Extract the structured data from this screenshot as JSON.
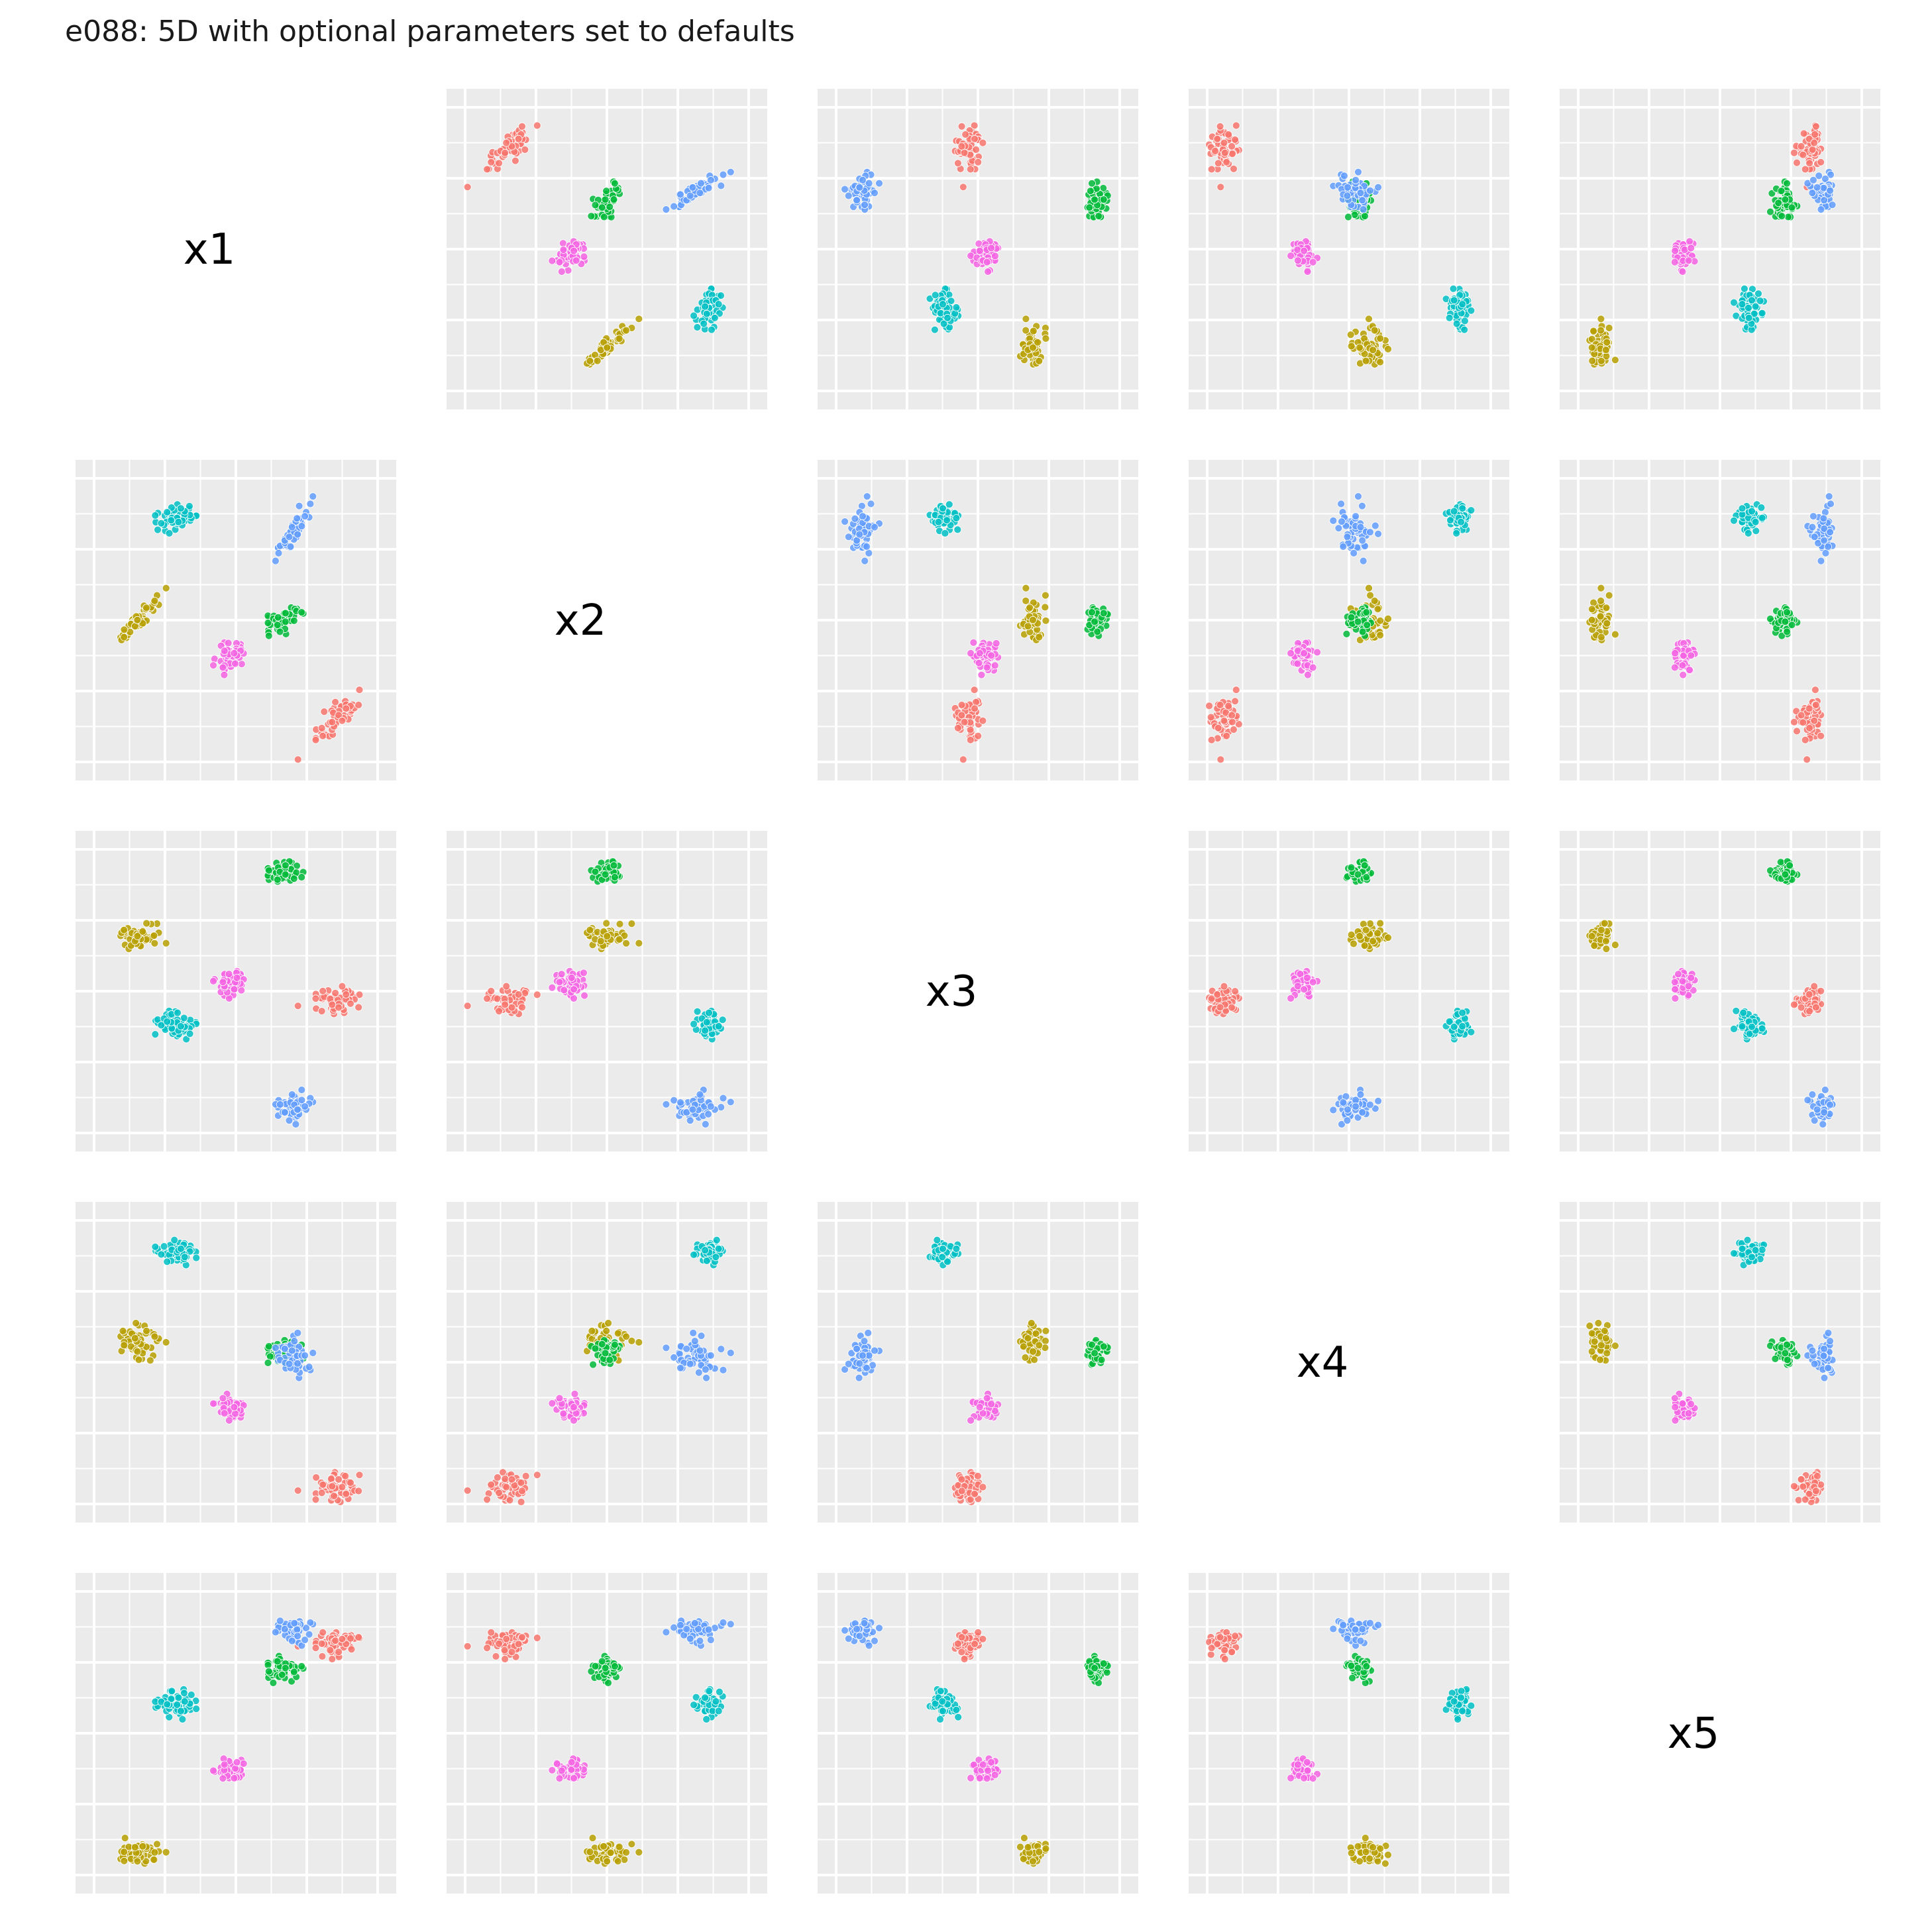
{
  "title": "e088: 5D with optional parameters set to defaults",
  "chart_data": {
    "type": "scatter",
    "variables": [
      "x1",
      "x2",
      "x3",
      "x4",
      "x5"
    ],
    "axis_range": [
      0,
      1
    ],
    "grid": true,
    "legend": "none",
    "cluster_colors": {
      "red": "#F8766D",
      "olive": "#B79F00",
      "green": "#00BA38",
      "cyan": "#00BFC4",
      "blue": "#619CFF",
      "magenta": "#F564E3"
    },
    "clusters": [
      {
        "color": "red",
        "center": [
          0.85,
          0.15,
          0.47,
          0.06,
          0.82
        ],
        "spread": [
          0.04,
          0.04,
          0.022,
          0.025,
          0.02
        ],
        "corr12": 0.85
      },
      {
        "color": "olive",
        "center": [
          0.16,
          0.5,
          0.69,
          0.57,
          0.08
        ],
        "spread": [
          0.035,
          0.035,
          0.022,
          0.03,
          0.02
        ],
        "corr12": 0.85
      },
      {
        "color": "green",
        "center": [
          0.67,
          0.5,
          0.92,
          0.54,
          0.73
        ],
        "spread": [
          0.03,
          0.025,
          0.02,
          0.02,
          0.02
        ],
        "corr12": 0.6
      },
      {
        "color": "cyan",
        "center": [
          0.3,
          0.86,
          0.38,
          0.89,
          0.6
        ],
        "spread": [
          0.035,
          0.02,
          0.022,
          0.02,
          0.025
        ],
        "corr12": 0.3
      },
      {
        "color": "blue",
        "center": [
          0.71,
          0.82,
          0.09,
          0.52,
          0.86
        ],
        "spread": [
          0.03,
          0.045,
          0.025,
          0.03,
          0.02
        ],
        "corr12": 0.85
      },
      {
        "color": "magenta",
        "center": [
          0.48,
          0.37,
          0.53,
          0.34,
          0.37
        ],
        "spread": [
          0.025,
          0.025,
          0.022,
          0.02,
          0.02
        ],
        "corr12": 0.3
      }
    ],
    "points_per_cluster": 55
  }
}
